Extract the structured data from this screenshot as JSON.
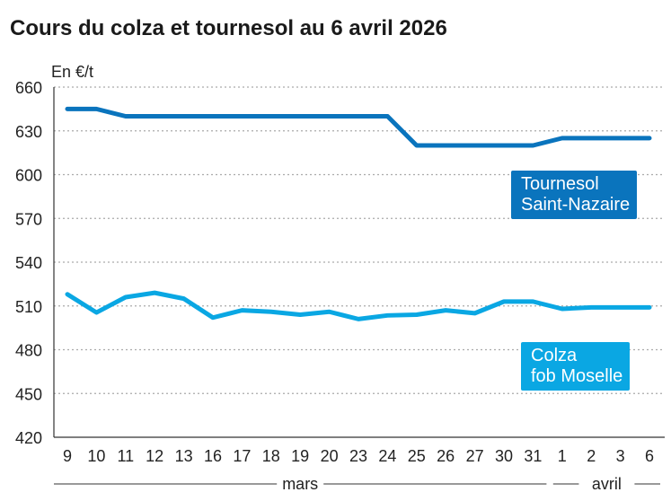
{
  "chart_data": {
    "type": "line",
    "title": "Cours du colza et tournesol au 6 avril 2026",
    "ylabel": "En €/t",
    "ylim": [
      420,
      660
    ],
    "yticks": [
      420,
      450,
      480,
      510,
      540,
      570,
      600,
      630,
      660
    ],
    "grid": true,
    "categories": [
      "9",
      "10",
      "11",
      "12",
      "13",
      "16",
      "17",
      "18",
      "19",
      "20",
      "23",
      "24",
      "25",
      "26",
      "27",
      "30",
      "31",
      "1",
      "2",
      "3",
      "6"
    ],
    "month_labels": [
      {
        "label": "mars",
        "from": "9",
        "to": "31"
      },
      {
        "label": "avril",
        "from": "1",
        "to": "6"
      }
    ],
    "series": [
      {
        "name": "Tournesol Saint-Nazaire",
        "name_lines": [
          "Tournesol",
          "Saint-Nazaire"
        ],
        "color": "#0a74bd",
        "values": [
          645,
          645,
          640,
          640,
          640,
          640,
          640,
          640,
          640,
          640,
          640,
          640,
          620,
          620,
          620,
          620,
          620,
          625,
          625,
          625,
          625
        ]
      },
      {
        "name": "Colza fob Moselle",
        "name_lines": [
          "Colza",
          "fob Moselle"
        ],
        "color": "#0aa7e3",
        "values": [
          518,
          505.5,
          516,
          519,
          515,
          502,
          507,
          506,
          504,
          506,
          501,
          503.5,
          504,
          507,
          505,
          513,
          513,
          508,
          509,
          509,
          509
        ]
      }
    ]
  }
}
